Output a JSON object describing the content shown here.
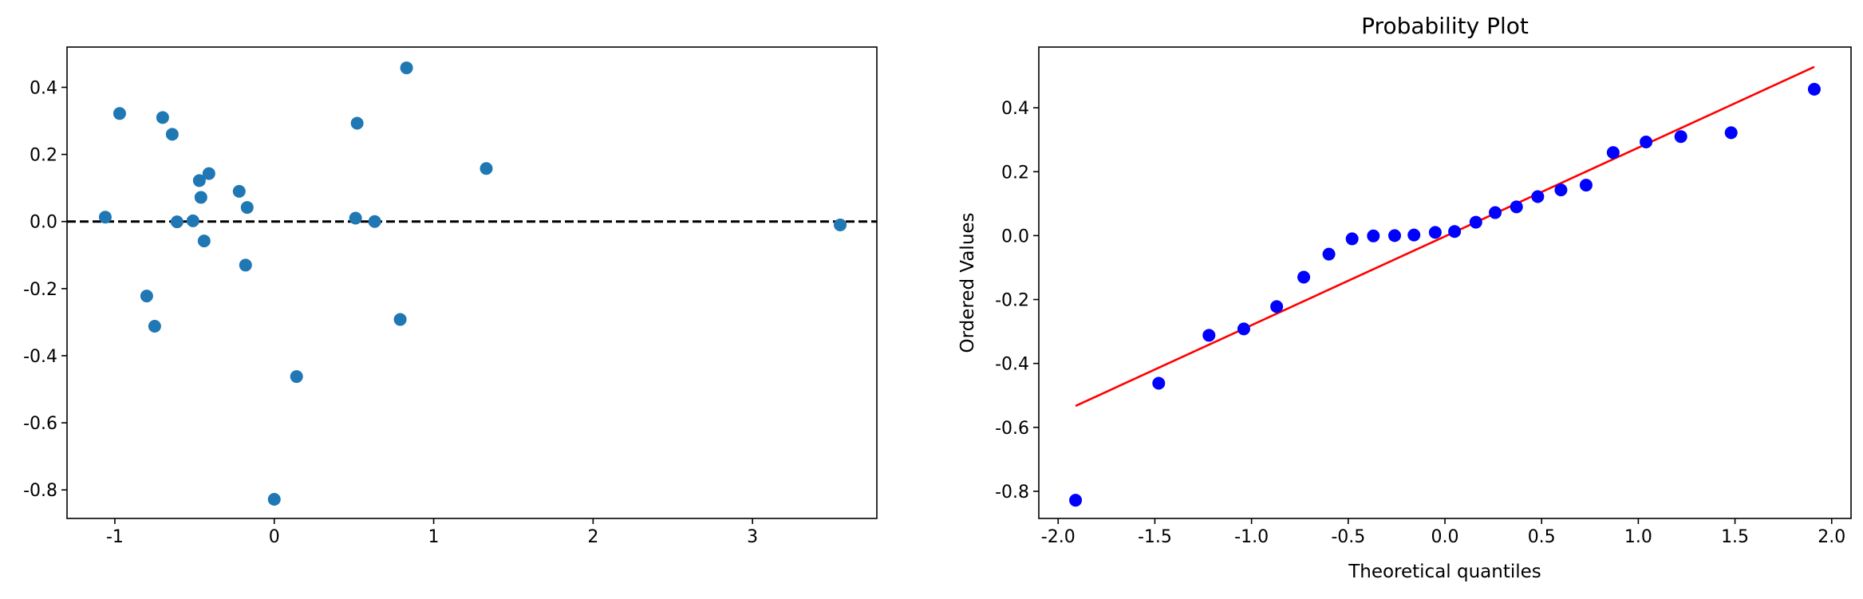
{
  "chart_data": [
    {
      "type": "scatter",
      "title": "",
      "xlabel": "",
      "ylabel": "",
      "xlim": [
        -1.3,
        3.78
      ],
      "ylim": [
        -0.885,
        0.52
      ],
      "xticks": [
        -1,
        0,
        1,
        2,
        3
      ],
      "yticks": [
        -0.8,
        -0.6,
        -0.4,
        -0.2,
        0.0,
        0.2,
        0.4
      ],
      "xtick_labels": [
        "-1",
        "0",
        "1",
        "2",
        "3"
      ],
      "ytick_labels": [
        "-0.8",
        "-0.6",
        "-0.4",
        "-0.2",
        "0.0",
        "0.2",
        "0.4"
      ],
      "grid": false,
      "reference_line": {
        "y": 0,
        "style": "dashed",
        "color": "#000000"
      },
      "series": [
        {
          "color": "#1f77b4",
          "points": [
            {
              "x": -1.06,
              "y": 0.013
            },
            {
              "x": -0.97,
              "y": 0.322
            },
            {
              "x": -0.8,
              "y": -0.222
            },
            {
              "x": -0.75,
              "y": -0.312
            },
            {
              "x": -0.7,
              "y": 0.31
            },
            {
              "x": -0.64,
              "y": 0.26
            },
            {
              "x": -0.61,
              "y": -0.001
            },
            {
              "x": -0.51,
              "y": 0.002
            },
            {
              "x": -0.47,
              "y": 0.122
            },
            {
              "x": -0.46,
              "y": 0.072
            },
            {
              "x": -0.44,
              "y": -0.058
            },
            {
              "x": -0.41,
              "y": 0.143
            },
            {
              "x": -0.22,
              "y": 0.09
            },
            {
              "x": -0.18,
              "y": -0.13
            },
            {
              "x": -0.17,
              "y": 0.042
            },
            {
              "x": 0.0,
              "y": -0.828
            },
            {
              "x": 0.14,
              "y": -0.462
            },
            {
              "x": 0.51,
              "y": 0.01
            },
            {
              "x": 0.52,
              "y": 0.293
            },
            {
              "x": 0.63,
              "y": 0.0
            },
            {
              "x": 0.79,
              "y": -0.292
            },
            {
              "x": 0.83,
              "y": 0.458
            },
            {
              "x": 1.33,
              "y": 0.158
            },
            {
              "x": 3.55,
              "y": -0.01
            }
          ]
        }
      ]
    },
    {
      "type": "scatter",
      "title": "Probability Plot",
      "xlabel": "Theoretical quantiles",
      "ylabel": "Ordered Values",
      "xlim": [
        -2.1,
        2.1
      ],
      "ylim": [
        -0.885,
        0.59
      ],
      "xticks": [
        -2.0,
        -1.5,
        -1.0,
        -0.5,
        0.0,
        0.5,
        1.0,
        1.5,
        2.0
      ],
      "yticks": [
        -0.8,
        -0.6,
        -0.4,
        -0.2,
        0.0,
        0.2,
        0.4
      ],
      "xtick_labels": [
        "-2.0",
        "-1.5",
        "-1.0",
        "-0.5",
        "0.0",
        "0.5",
        "1.0",
        "1.5",
        "2.0"
      ],
      "ytick_labels": [
        "-0.8",
        "-0.6",
        "-0.4",
        "-0.2",
        "0.0",
        "0.2",
        "0.4"
      ],
      "grid": false,
      "fit_line": {
        "x": [
          -1.91,
          1.91
        ],
        "y": [
          -0.533,
          0.528
        ],
        "color": "#ff0000"
      },
      "series": [
        {
          "color": "#0000ff",
          "points": [
            {
              "x": -1.91,
              "y": -0.828
            },
            {
              "x": -1.48,
              "y": -0.462
            },
            {
              "x": -1.22,
              "y": -0.312
            },
            {
              "x": -1.04,
              "y": -0.292
            },
            {
              "x": -0.87,
              "y": -0.222
            },
            {
              "x": -0.73,
              "y": -0.13
            },
            {
              "x": -0.6,
              "y": -0.058
            },
            {
              "x": -0.48,
              "y": -0.01
            },
            {
              "x": -0.37,
              "y": -0.001
            },
            {
              "x": -0.26,
              "y": 0.0
            },
            {
              "x": -0.16,
              "y": 0.002
            },
            {
              "x": -0.05,
              "y": 0.01
            },
            {
              "x": 0.05,
              "y": 0.013
            },
            {
              "x": 0.16,
              "y": 0.042
            },
            {
              "x": 0.26,
              "y": 0.072
            },
            {
              "x": 0.37,
              "y": 0.09
            },
            {
              "x": 0.48,
              "y": 0.122
            },
            {
              "x": 0.6,
              "y": 0.143
            },
            {
              "x": 0.73,
              "y": 0.158
            },
            {
              "x": 0.87,
              "y": 0.26
            },
            {
              "x": 1.04,
              "y": 0.293
            },
            {
              "x": 1.22,
              "y": 0.31
            },
            {
              "x": 1.48,
              "y": 0.322
            },
            {
              "x": 1.91,
              "y": 0.458
            }
          ]
        }
      ]
    }
  ]
}
